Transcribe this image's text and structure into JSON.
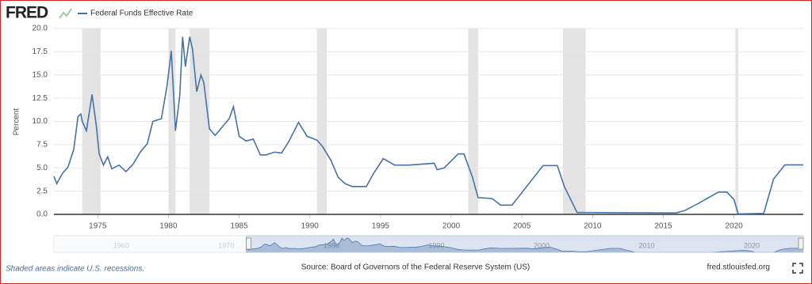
{
  "header": {
    "logo": "FRED"
  },
  "chart_data": {
    "type": "line",
    "y_label": "Percent",
    "x": [
      1971.9,
      1972.1,
      1972.5,
      1972.9,
      1973.3,
      1973.6,
      1973.8,
      1973.9,
      1974.2,
      1974.6,
      1974.9,
      1975.1,
      1975.4,
      1975.7,
      1976.0,
      1976.5,
      1977.0,
      1977.5,
      1978.0,
      1978.5,
      1978.9,
      1979.5,
      1979.9,
      1980.2,
      1980.5,
      1980.8,
      1981.0,
      1981.2,
      1981.5,
      1981.7,
      1982.0,
      1982.3,
      1982.5,
      1982.9,
      1983.3,
      1983.8,
      1984.3,
      1984.6,
      1985.0,
      1985.5,
      1986.0,
      1986.5,
      1986.9,
      1987.5,
      1988.0,
      1988.5,
      1989.2,
      1989.8,
      1990.5,
      1990.9,
      1991.5,
      1992.0,
      1992.5,
      1993.0,
      1994.0,
      1994.5,
      1995.2,
      1996.0,
      1997.0,
      1998.8,
      1999.0,
      1999.5,
      2000.5,
      2000.9,
      2001.5,
      2001.9,
      2002.9,
      2003.5,
      2004.3,
      2006.5,
      2007.5,
      2008.0,
      2008.9,
      2015.9,
      2016.5,
      2017.5,
      2018.9,
      2019.5,
      2020.0,
      2020.3,
      2022.1,
      2022.8,
      2023.6,
      2024.9
    ],
    "series": [
      {
        "name": "Federal Funds Effective Rate",
        "color": "#4572a7",
        "values": [
          4.1,
          3.3,
          4.4,
          5.1,
          7.0,
          10.5,
          10.8,
          10.0,
          9.0,
          12.9,
          9.5,
          6.5,
          5.3,
          6.2,
          4.9,
          5.3,
          4.6,
          5.4,
          6.7,
          7.6,
          10.0,
          10.3,
          13.8,
          17.6,
          9.0,
          12.8,
          19.1,
          15.9,
          19.1,
          17.8,
          13.2,
          15.0,
          14.2,
          9.2,
          8.5,
          9.4,
          10.3,
          11.6,
          8.4,
          7.9,
          8.1,
          6.4,
          6.4,
          6.7,
          6.6,
          7.8,
          9.9,
          8.4,
          8.0,
          7.3,
          5.8,
          4.0,
          3.3,
          3.0,
          3.0,
          4.4,
          6.0,
          5.3,
          5.3,
          5.5,
          4.8,
          5.0,
          6.5,
          6.5,
          4.0,
          1.8,
          1.7,
          1.0,
          1.0,
          5.25,
          5.25,
          3.0,
          0.2,
          0.15,
          0.4,
          1.2,
          2.4,
          2.4,
          1.6,
          0.05,
          0.1,
          3.8,
          5.33,
          5.33
        ]
      }
    ],
    "xlim": [
      1971.9,
      2024.9
    ],
    "xticks": [
      1975,
      1980,
      1985,
      1990,
      1995,
      2000,
      2005,
      2010,
      2015,
      2020
    ],
    "ylim": [
      0,
      20
    ],
    "yticks": [
      {
        "value": 0,
        "label": "0.0"
      },
      {
        "value": 2.5,
        "label": "2.5"
      },
      {
        "value": 5,
        "label": "5.0"
      },
      {
        "value": 7.5,
        "label": "7.5"
      },
      {
        "value": 10,
        "label": "10.0"
      },
      {
        "value": 12.5,
        "label": "12.5"
      },
      {
        "value": 15,
        "label": "15.0"
      },
      {
        "value": 17.5,
        "label": "17.5"
      },
      {
        "value": 20,
        "label": "20.0"
      }
    ],
    "grid": true,
    "recessions": [
      [
        1973.9,
        1975.2
      ],
      [
        1980.0,
        1980.5
      ],
      [
        1981.5,
        1982.9
      ],
      [
        1990.5,
        1991.2
      ],
      [
        2001.2,
        2001.9
      ],
      [
        2007.9,
        2009.5
      ],
      [
        2020.1,
        2020.3
      ]
    ],
    "recession_color": "#e3e3e3",
    "navigator": {
      "xlim": [
        1953.6,
        2024.9
      ],
      "xticks": [
        1960,
        1970,
        1980,
        1990,
        2000,
        2010,
        2020
      ]
    }
  },
  "footer": {
    "note": "Shaded areas indicate U.S. recessions.",
    "source": "Source: Board of Governors of the Federal Reserve System (US)",
    "url": "fred.stlouisfed.org"
  }
}
